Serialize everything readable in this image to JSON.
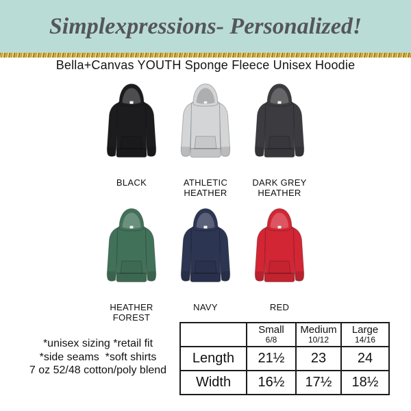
{
  "banner": {
    "text": "Simplexpressions- Personalized!",
    "background": "#b9dcd6",
    "text_color": "#55565a",
    "divider_color": "#c7a33b",
    "divider_style": "gold-glitter"
  },
  "product_title": "Bella+Canvas YOUTH Sponge Fleece Unisex Hoodie",
  "colors": [
    {
      "label": "BLACK",
      "hex": "#1c1c1e"
    },
    {
      "label": "ATHLETIC HEATHER",
      "hex": "#d4d5d7"
    },
    {
      "label": "DARK GREY HEATHER",
      "hex": "#3c3b3f"
    },
    {
      "label": "HEATHER FOREST",
      "hex": "#427159"
    },
    {
      "label": "NAVY",
      "hex": "#2c3552"
    },
    {
      "label": "RED",
      "hex": "#d22634"
    }
  ],
  "details": {
    "lines": [
      "*unisex sizing *retail fit",
      "*side seams  *soft shirts",
      "7 oz 52/48 cotton/poly blend"
    ]
  },
  "size_chart": {
    "columns": [
      {
        "size": "Small",
        "range": "6/8"
      },
      {
        "size": "Medium",
        "range": "10/12"
      },
      {
        "size": "Large",
        "range": "14/16"
      }
    ],
    "rows": [
      {
        "label": "Length",
        "values": [
          "21½",
          "23",
          "24"
        ]
      },
      {
        "label": "Width",
        "values": [
          "16½",
          "17½",
          "18½"
        ]
      }
    ]
  }
}
